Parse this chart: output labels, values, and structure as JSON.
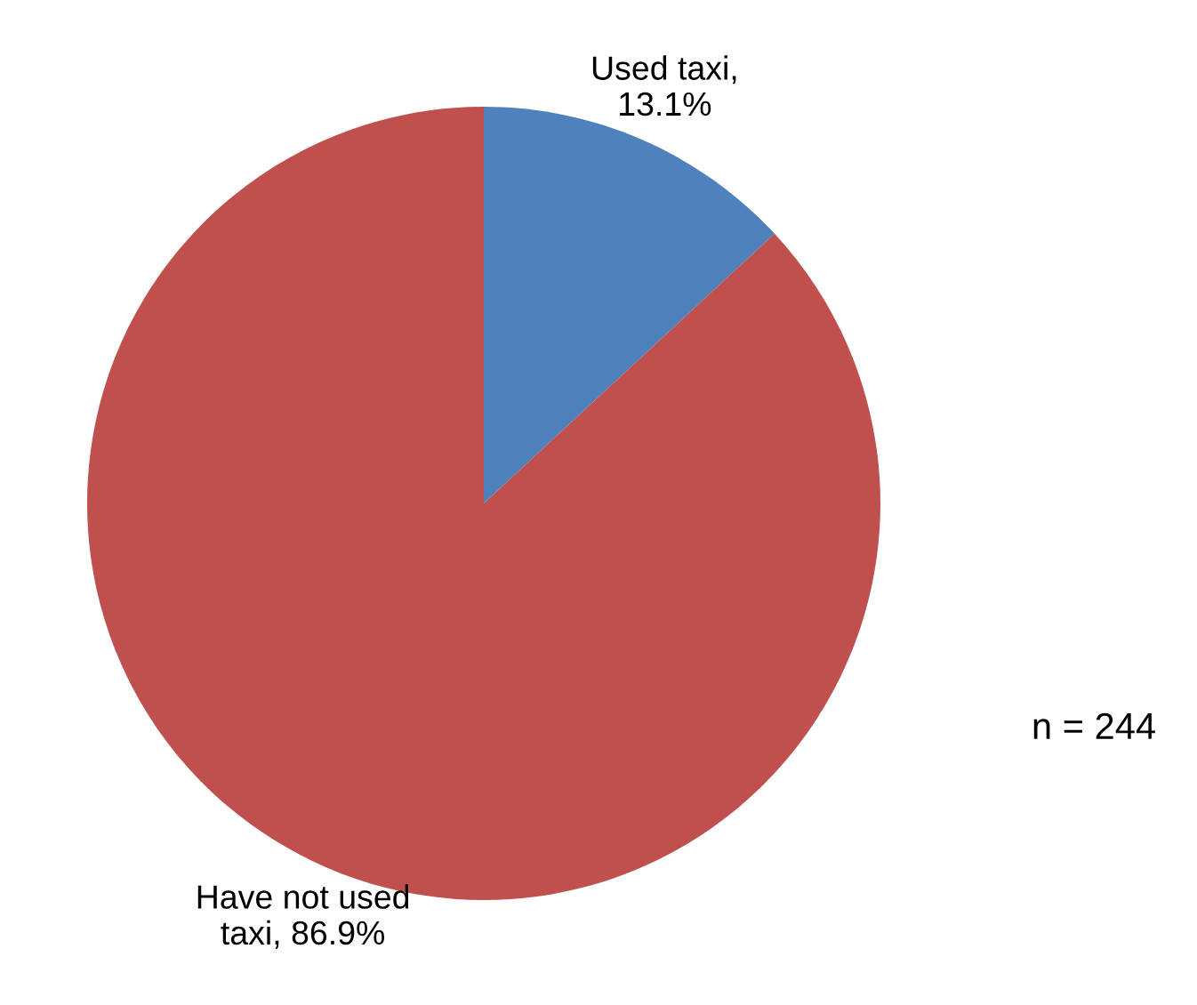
{
  "chart_data": {
    "type": "pie",
    "categories": [
      null,
      null
    ],
    "value_labels": [
      "Used taxi, 13.1%",
      "Have not used taxi, 86.9%"
    ],
    "values": [
      13.1,
      86.9
    ],
    "colors": [
      "#4f81bd",
      "#c0504d"
    ],
    "annotations": [
      "n = 244"
    ]
  }
}
